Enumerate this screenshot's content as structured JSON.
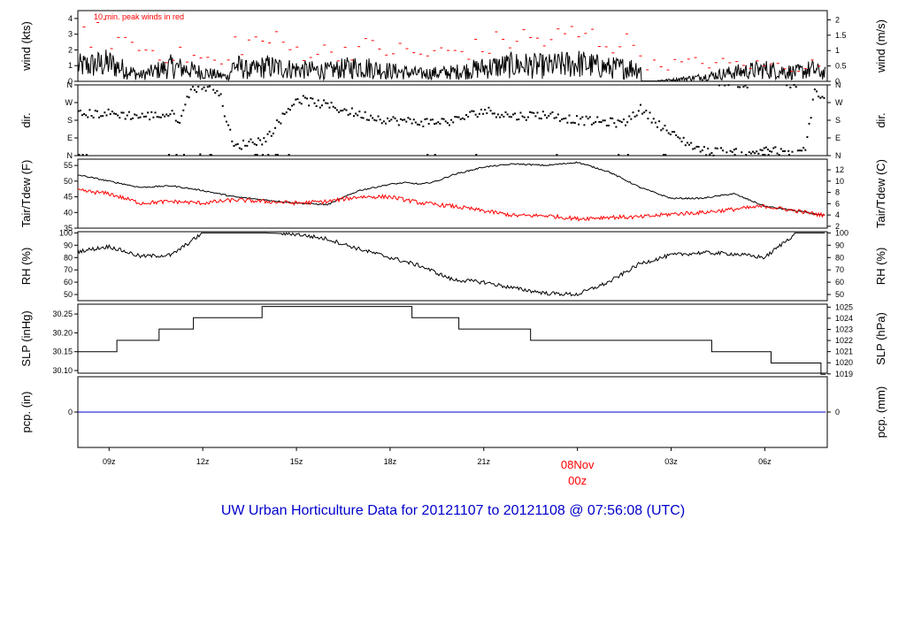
{
  "title": "UW Urban Horticulture Data for 20121107  to  20121108 @ 07:56:08  (UTC)",
  "colors": {
    "primary": "#000000",
    "secondary": "#ff0000",
    "title": "#0000cc",
    "precip": "#0000cc"
  },
  "chart_data": [
    {
      "id": "wind",
      "type": "line",
      "ylabel": "wind (kts)",
      "ylabel_right": "wind (m/s)",
      "annotation": "10 min. peak winds in red",
      "ylim": [
        0,
        4.5
      ],
      "yticks": [
        0,
        1,
        2,
        3,
        4
      ],
      "right_ylim": [
        0,
        2.3
      ],
      "right_yticks": [
        "0",
        "0.5",
        "1",
        "1.5",
        "2"
      ],
      "right_tick_values": [
        0,
        0.5,
        1,
        1.5,
        2
      ],
      "x": [
        0,
        1,
        2,
        3,
        4,
        4.8,
        5,
        5.5,
        6,
        7,
        8,
        9,
        10,
        11,
        12,
        13,
        14,
        15,
        16,
        17,
        18,
        18.1,
        18.5,
        19,
        20,
        21,
        22,
        22.5,
        23,
        23.5,
        23.95
      ],
      "series": [
        {
          "values": [
            1.0,
            1.2,
            0.4,
            1.0,
            0.6,
            0.3,
            1.1,
            0.7,
            1.0,
            0.8,
            0.7,
            1.0,
            0.7,
            0.5,
            0.6,
            0.9,
            1.1,
            1.0,
            1.2,
            0.9,
            0.9,
            0.1,
            0.05,
            0.1,
            0.3,
            0.6,
            0.8,
            0.7,
            0.6,
            0.8,
            0.5
          ]
        },
        {
          "values": [
            3.8,
            3.5,
            2.5,
            2.0,
            1.7,
            1.2,
            3.0,
            2.8,
            3.2,
            2.3,
            2.2,
            2.5,
            2.4,
            2.0,
            2.2,
            2.5,
            3.3,
            3.0,
            3.5,
            3.0,
            2.6,
            1.4,
            1.2,
            1.3,
            1.4,
            1.3,
            1.2,
            1.2,
            1.0,
            1.3,
            1.2
          ]
        }
      ]
    },
    {
      "id": "dir",
      "type": "scatter",
      "ylabel": "dir.",
      "ylabel_right": "dir.",
      "ylim": [
        0,
        360
      ],
      "yticks": [
        "N",
        "E",
        "S",
        "W",
        "N"
      ],
      "tick_values": [
        0,
        90,
        180,
        270,
        360
      ],
      "x": [
        0,
        1,
        2,
        3,
        3.3,
        3.6,
        4,
        4.5,
        5,
        5.5,
        6,
        7,
        8,
        9,
        10,
        11,
        12,
        13,
        14,
        15,
        16,
        16.5,
        17,
        17.5,
        18,
        19,
        20,
        21,
        21.5,
        22,
        22.5,
        23,
        23.3,
        23.6,
        23.95
      ],
      "values": [
        210,
        215,
        200,
        210,
        180,
        340,
        350,
        340,
        40,
        70,
        80,
        290,
        255,
        210,
        180,
        170,
        175,
        230,
        200,
        210,
        180,
        175,
        170,
        165,
        240,
        110,
        25,
        15,
        0,
        40,
        15,
        0,
        30,
        335,
        270
      ]
    },
    {
      "id": "temp",
      "type": "line",
      "ylabel": "Tair/Tdew (F)",
      "ylabel_right": "Tair/Tdew (C)",
      "ylim": [
        35,
        57
      ],
      "yticks": [
        35,
        40,
        45,
        50,
        55
      ],
      "right_ylim": [
        1.67,
        13.89
      ],
      "right_yticks": [
        "2",
        "4",
        "6",
        "8",
        "10",
        "12"
      ],
      "right_tick_values": [
        2,
        4,
        6,
        8,
        10,
        12
      ],
      "x": [
        0,
        1,
        2,
        3,
        4,
        5,
        6,
        7,
        8,
        9,
        10,
        10.5,
        11,
        11.5,
        12,
        13,
        14,
        15,
        16,
        17,
        18,
        19,
        20,
        21,
        22,
        23,
        23.95
      ],
      "series": [
        {
          "values": [
            52,
            50,
            48,
            48.5,
            47,
            45,
            44,
            43,
            42.5,
            47,
            49,
            49.5,
            49,
            50,
            52,
            54.5,
            55.5,
            55,
            56,
            53,
            48,
            44.5,
            44.5,
            46,
            42,
            40.5,
            39
          ]
        },
        {
          "values": [
            47,
            46,
            43,
            43.5,
            43,
            44,
            43.5,
            43,
            43.5,
            45,
            45,
            44,
            43,
            42.5,
            42,
            40.5,
            39,
            39,
            38,
            38.5,
            38.5,
            39.5,
            40,
            41,
            42,
            40.5,
            39
          ]
        }
      ]
    },
    {
      "id": "rh",
      "type": "line",
      "ylabel": "RH (%)",
      "ylabel_right": "RH (%)",
      "ylim": [
        45,
        101
      ],
      "yticks": [
        50,
        60,
        70,
        80,
        90,
        100
      ],
      "x": [
        0,
        1,
        2,
        3,
        4,
        5,
        6,
        7,
        8,
        9,
        10,
        11,
        12,
        13,
        14,
        15,
        16,
        17,
        18,
        19,
        20,
        21,
        22,
        22.5,
        23,
        23.95
      ],
      "values": [
        85,
        89,
        81,
        82,
        100,
        100,
        100,
        99,
        95,
        87,
        80,
        73,
        62,
        60,
        55,
        51,
        50,
        60,
        75,
        82,
        84,
        83,
        80,
        90,
        100,
        100
      ]
    },
    {
      "id": "slp",
      "type": "line",
      "ylabel": "SLP (inHg)",
      "ylabel_right": "SLP (hPa)",
      "ylim": [
        30.093,
        30.276
      ],
      "yticks": [
        "30.10",
        "30.15",
        "30.20",
        "30.25"
      ],
      "tick_values": [
        30.1,
        30.15,
        30.2,
        30.25
      ],
      "right_yticks": [
        "1019",
        "1020",
        "1021",
        "1022",
        "1023",
        "1024",
        "1025"
      ],
      "right_tick_values": [
        1019,
        1020,
        1021,
        1022,
        1023,
        1024,
        1025
      ],
      "x": [
        0,
        1.25,
        2.6,
        3.7,
        5.9,
        10.7,
        12.2,
        14.5,
        20.3,
        22.2,
        23.8,
        23.95
      ],
      "values": [
        30.15,
        30.18,
        30.21,
        30.24,
        30.27,
        30.24,
        30.21,
        30.18,
        30.15,
        30.12,
        30.09,
        30.09
      ]
    },
    {
      "id": "pcp",
      "type": "line",
      "ylabel": "pcp. (in)",
      "ylabel_right": "pcp. (mm)",
      "ylim": [
        -1,
        1
      ],
      "yticks": [
        "0"
      ],
      "tick_values": [
        0
      ],
      "right_yticks": [
        "0"
      ],
      "right_tick_values": [
        0
      ],
      "x": [
        0,
        23.95
      ],
      "values": [
        0,
        0
      ]
    }
  ],
  "x_axis": {
    "ticks": [
      {
        "hour": 1,
        "label": "09z"
      },
      {
        "hour": 4,
        "label": "12z"
      },
      {
        "hour": 7,
        "label": "15z"
      },
      {
        "hour": 10,
        "label": "18z"
      },
      {
        "hour": 13,
        "label": "21z"
      },
      {
        "hour": 19,
        "label": "03z"
      },
      {
        "hour": 22,
        "label": "06z"
      }
    ],
    "date_mark": {
      "hour": 16,
      "label1": "08Nov",
      "label2": "00z"
    }
  }
}
